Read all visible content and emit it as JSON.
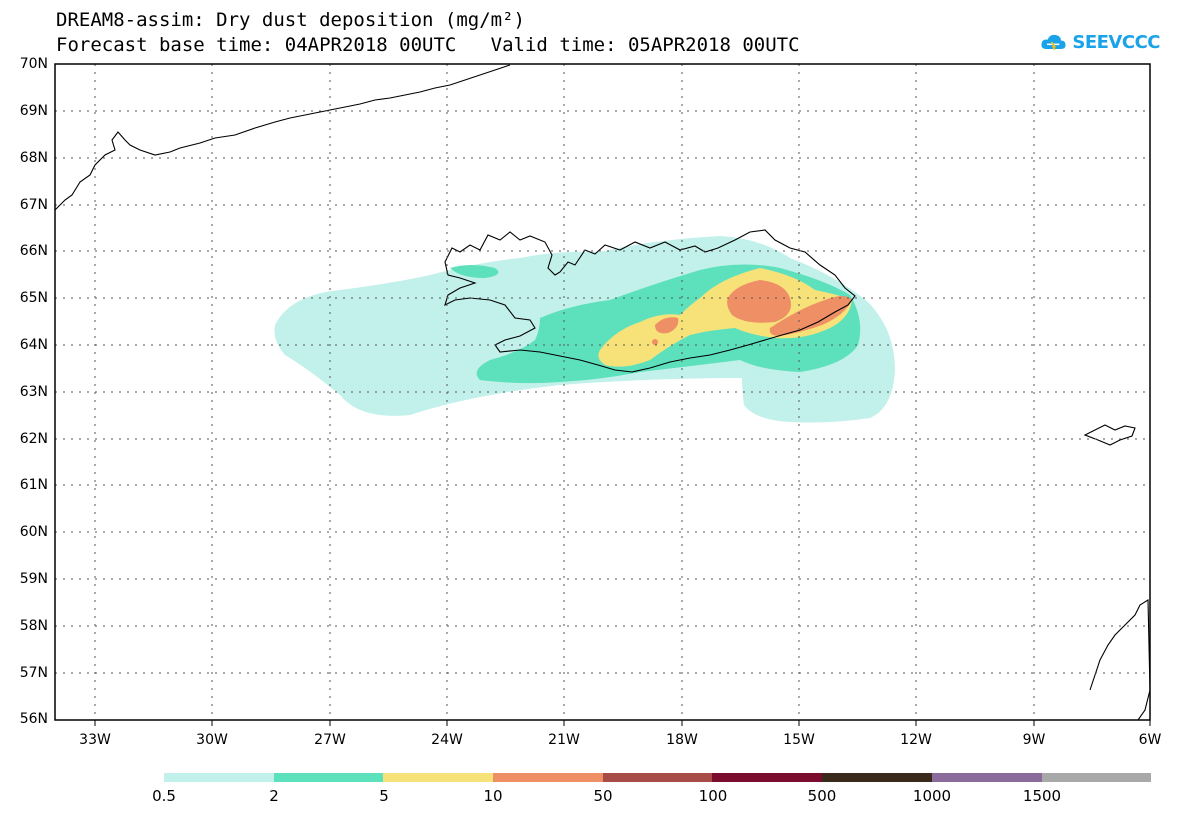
{
  "header": {
    "title_line1": "DREAM8-assim: Dry dust deposition (mg/m²)",
    "title_line2": "Forecast base time: 04APR2018 00UTC   Valid time: 05APR2018 00UTC"
  },
  "logo": {
    "text": "SEEVCCC",
    "icon": "cloud-icon",
    "color": "#1aa3e8"
  },
  "map": {
    "lat_labels": [
      "70N",
      "69N",
      "68N",
      "67N",
      "66N",
      "65N",
      "64N",
      "63N",
      "62N",
      "61N",
      "60N",
      "59N",
      "58N",
      "57N",
      "56N"
    ],
    "lon_labels": [
      "33W",
      "30W",
      "27W",
      "24W",
      "21W",
      "18W",
      "15W",
      "12W",
      "9W",
      "6W"
    ],
    "region": "Iceland / North Atlantic"
  },
  "colorbar": {
    "labels": [
      "0.5",
      "2",
      "5",
      "10",
      "50",
      "100",
      "500",
      "1000",
      "1500"
    ],
    "colors": [
      "#c2f0ea",
      "#5de0bc",
      "#f7e27a",
      "#ef8f66",
      "#a84c48",
      "#7a0d2e",
      "#3a2a1c",
      "#8a6b9c",
      "#a8a8a8"
    ]
  }
}
